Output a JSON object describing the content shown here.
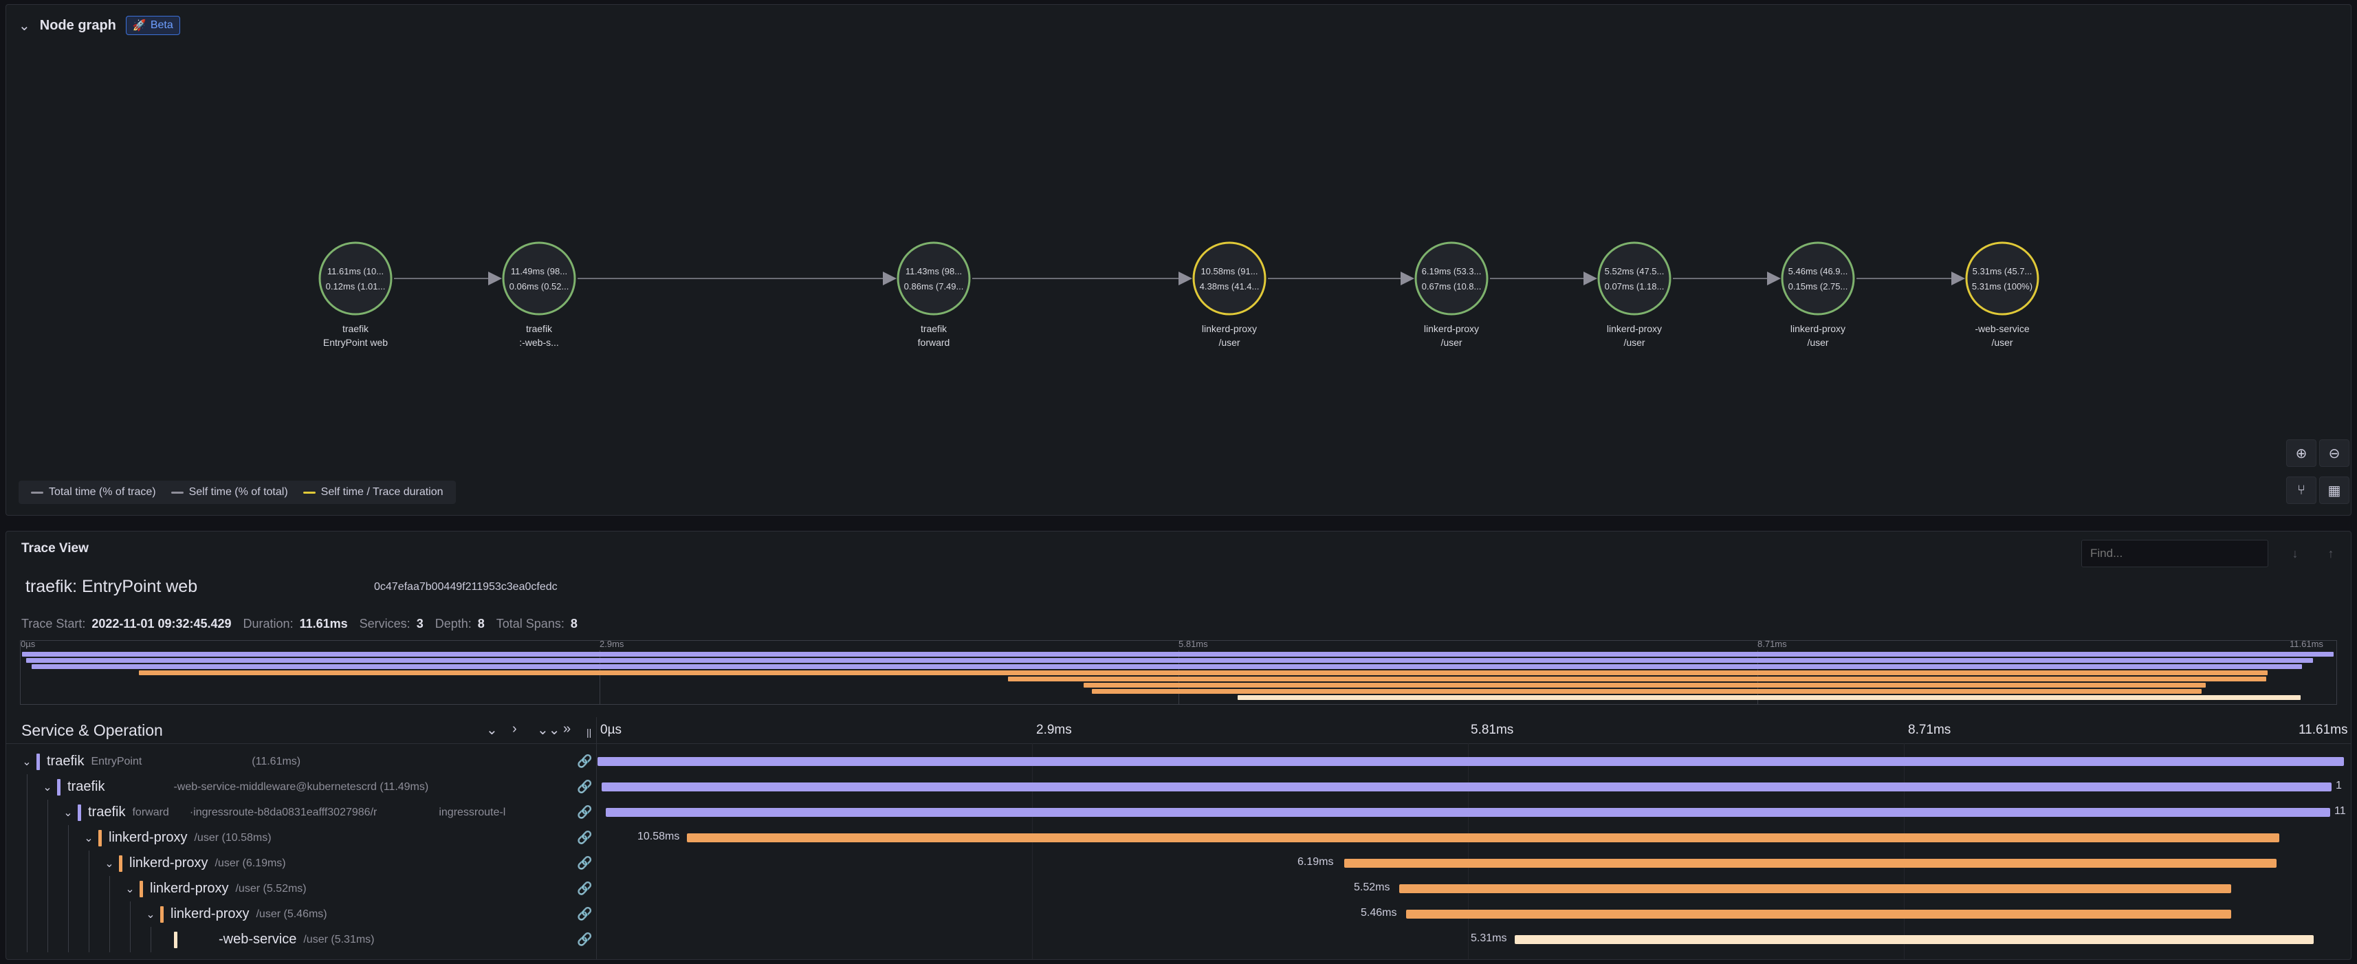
{
  "node_graph": {
    "title": "Node graph",
    "beta_label": "Beta",
    "nodes": [
      {
        "stat1": "11.61ms (10...",
        "stat2": "0.12ms (1.01...",
        "label1": "traefik",
        "label2": "EntryPoint web",
        "color": "#7eb26d"
      },
      {
        "stat1": "11.49ms (98...",
        "stat2": "0.06ms (0.52...",
        "label1": "traefik",
        "label2": ":-web-s...",
        "color": "#7eb26d"
      },
      {
        "stat1": "11.43ms (98...",
        "stat2": "0.86ms (7.49...",
        "label1": "traefik",
        "label2": "forward",
        "color": "#7eb26d"
      },
      {
        "stat1": "10.58ms (91...",
        "stat2": "4.38ms (41.4...",
        "label1": "linkerd-proxy",
        "label2": "/user",
        "color": "#e0c938"
      },
      {
        "stat1": "6.19ms (53.3...",
        "stat2": "0.67ms (10.8...",
        "label1": "linkerd-proxy",
        "label2": "/user",
        "color": "#7eb26d"
      },
      {
        "stat1": "5.52ms (47.5...",
        "stat2": "0.07ms (1.18...",
        "label1": "linkerd-proxy",
        "label2": "/user",
        "color": "#7eb26d"
      },
      {
        "stat1": "5.46ms (46.9...",
        "stat2": "0.15ms (2.75...",
        "label1": "linkerd-proxy",
        "label2": "/user",
        "color": "#7eb26d"
      },
      {
        "stat1": "5.31ms (45.7...",
        "stat2": "5.31ms (100%)",
        "label1": "-web-service",
        "label2": "/user",
        "color": "#e0c938"
      }
    ],
    "legend": [
      {
        "label": "Total time (% of trace)",
        "color": "#8e8e99"
      },
      {
        "label": "Self time (% of total)",
        "color": "#8e8e99"
      },
      {
        "label": "Self time / Trace duration",
        "color": "#e0c938"
      }
    ],
    "controls": [
      "zoom-in-icon",
      "zoom-out-icon",
      "layout-icon",
      "grid-icon"
    ]
  },
  "trace_view": {
    "title": "Trace View",
    "find_placeholder": "Find...",
    "trace_name": "traefik: EntryPoint web",
    "trace_id": "0c47efaa7b00449f211953c3ea0cfedc",
    "stats": [
      {
        "key": "Trace Start:",
        "value": "2022-11-01 09:32:45.429"
      },
      {
        "key": "Duration:",
        "value": "11.61ms"
      },
      {
        "key": "Services:",
        "value": "3"
      },
      {
        "key": "Depth:",
        "value": "8"
      },
      {
        "key": "Total Spans:",
        "value": "8"
      }
    ],
    "minimap_ticks": [
      "0µs",
      "2.9ms",
      "5.81ms",
      "8.71ms",
      "11.61ms"
    ],
    "header_title": "Service & Operation",
    "timeline_ticks": [
      "0µs",
      "2.9ms",
      "5.81ms",
      "8.71ms",
      "11.61ms"
    ],
    "spans": [
      {
        "service": "traefik",
        "operation": "EntryPoint",
        "extra": "(11.61ms)",
        "duration_label": "",
        "end_label": "",
        "color": "#a69ef0"
      },
      {
        "service": "traefik",
        "operation": "",
        "extra": "-web-service-middleware@kubernetescrd (11.49ms)",
        "duration_label": "",
        "end_label": "1",
        "color": "#a69ef0"
      },
      {
        "service": "traefik",
        "operation": "forward",
        "extra": "·ingressroute-b8da0831eafff3027986/r",
        "extra2": "ingressroute-l",
        "duration_label": "",
        "end_label": "11",
        "color": "#a69ef0"
      },
      {
        "service": "linkerd-proxy",
        "operation": "/user (10.58ms)",
        "extra": "",
        "duration_label": "10.58ms",
        "end_label": "",
        "color": "#f0a35e"
      },
      {
        "service": "linkerd-proxy",
        "operation": "/user (6.19ms)",
        "extra": "",
        "duration_label": "6.19ms",
        "end_label": "",
        "color": "#f0a35e"
      },
      {
        "service": "linkerd-proxy",
        "operation": "/user (5.52ms)",
        "extra": "",
        "duration_label": "5.52ms",
        "end_label": "",
        "color": "#f0a35e"
      },
      {
        "service": "linkerd-proxy",
        "operation": "/user (5.46ms)",
        "extra": "",
        "duration_label": "5.46ms",
        "end_label": "",
        "color": "#f0a35e"
      },
      {
        "service": "-web-service",
        "operation": "/user (5.31ms)",
        "extra": "",
        "duration_label": "5.31ms",
        "end_label": "",
        "color": "#fbe6c8"
      }
    ]
  }
}
